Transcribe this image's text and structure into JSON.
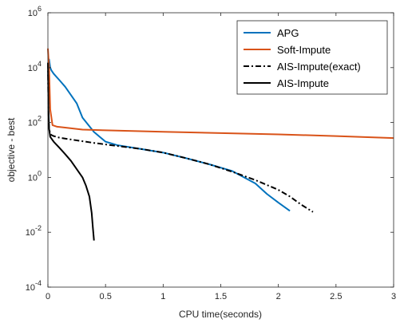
{
  "chart_data": {
    "type": "line",
    "title": "",
    "xlabel": "CPU time(seconds)",
    "ylabel": "objective - best",
    "xlim": [
      0,
      3
    ],
    "ylim": [
      0.0001,
      1000000
    ],
    "yscale": "log",
    "x_ticks": [
      0,
      0.5,
      1,
      1.5,
      2,
      2.5,
      3
    ],
    "x_tick_labels": [
      "0",
      "0.5",
      "1",
      "1.5",
      "2",
      "2.5",
      "3"
    ],
    "y_ticks": [
      0.0001,
      0.01,
      1,
      100,
      10000,
      1000000
    ],
    "y_tick_labels": [
      {
        "base": "10",
        "exp": "-4"
      },
      {
        "base": "10",
        "exp": "-2"
      },
      {
        "base": "10",
        "exp": "0"
      },
      {
        "base": "10",
        "exp": "2"
      },
      {
        "base": "10",
        "exp": "4"
      },
      {
        "base": "10",
        "exp": "6"
      }
    ],
    "grid": false,
    "legend_position": "top-right",
    "series": [
      {
        "name": "APG",
        "color": "#0072BD",
        "style": "solid",
        "x": [
          0,
          0.01,
          0.02,
          0.03,
          0.05,
          0.1,
          0.15,
          0.2,
          0.25,
          0.3,
          0.4,
          0.5,
          0.6,
          0.8,
          1.0,
          1.2,
          1.4,
          1.6,
          1.8,
          1.9,
          2.0,
          2.1
        ],
        "y": [
          5000,
          20000,
          10000,
          8000,
          6000,
          3500,
          2000,
          1000,
          500,
          150,
          45,
          20,
          15,
          11,
          8,
          5,
          3,
          1.7,
          0.6,
          0.25,
          0.12,
          0.06
        ]
      },
      {
        "name": "Soft-Impute",
        "color": "#D95319",
        "style": "solid",
        "x": [
          0,
          0.01,
          0.02,
          0.04,
          0.08,
          0.15,
          0.3,
          0.5,
          1.0,
          1.5,
          2.0,
          2.5,
          3.0
        ],
        "y": [
          50000,
          10000,
          300,
          80,
          70,
          65,
          55,
          52,
          46,
          41,
          37,
          32,
          27
        ]
      },
      {
        "name": "AIS-Impute(exact)",
        "color": "#000000",
        "style": "dashdot",
        "x": [
          0,
          0.005,
          0.01,
          0.02,
          0.03,
          0.05,
          0.1,
          0.2,
          0.4,
          0.6,
          0.8,
          1.0,
          1.2,
          1.4,
          1.6,
          1.8,
          2.0,
          2.1,
          2.2,
          2.3
        ],
        "y": [
          15000,
          200,
          60,
          40,
          35,
          32,
          28,
          24,
          18,
          14,
          11,
          8,
          5,
          3,
          1.6,
          0.8,
          0.35,
          0.2,
          0.1,
          0.055
        ]
      },
      {
        "name": "AIS-Impute",
        "color": "#000000",
        "style": "solid",
        "x": [
          0,
          0.005,
          0.01,
          0.02,
          0.05,
          0.1,
          0.15,
          0.2,
          0.25,
          0.3,
          0.33,
          0.36,
          0.38,
          0.39,
          0.4
        ],
        "y": [
          15000,
          300,
          60,
          30,
          20,
          12,
          7,
          4,
          2,
          1,
          0.5,
          0.2,
          0.05,
          0.015,
          0.005
        ]
      }
    ]
  }
}
